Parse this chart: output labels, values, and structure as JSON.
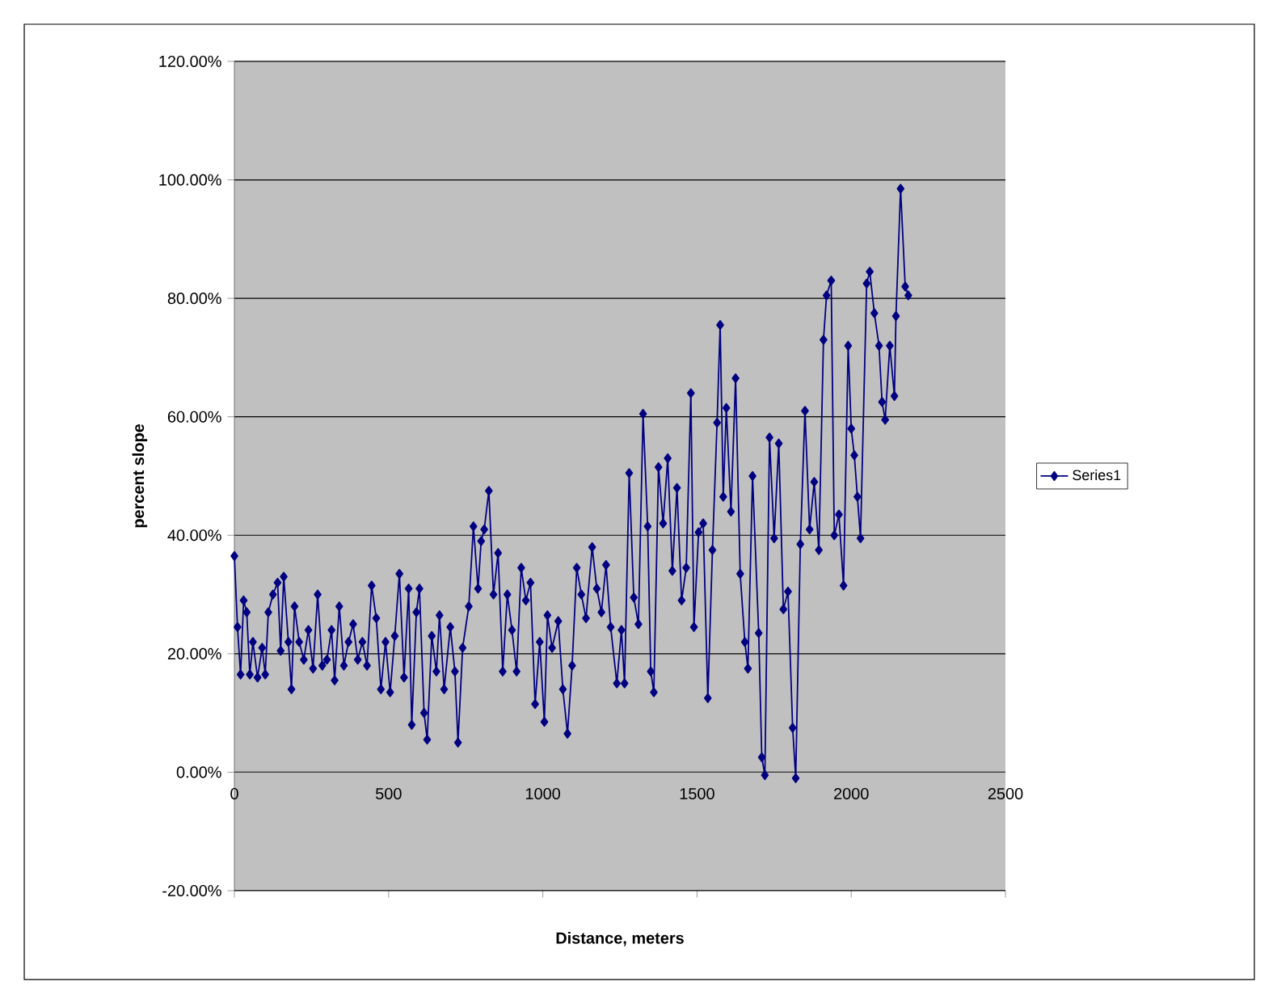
{
  "chart_data": {
    "type": "line",
    "xlabel": "Distance, meters",
    "ylabel": "percent slope",
    "xlim": [
      0,
      2500
    ],
    "xticks": [
      0,
      500,
      1000,
      1500,
      2000,
      2500
    ],
    "ylim": [
      -20,
      120
    ],
    "yticks": [
      {
        "value": -20,
        "label": "-20.00%"
      },
      {
        "value": 0,
        "label": "0.00%"
      },
      {
        "value": 20,
        "label": "20.00%"
      },
      {
        "value": 40,
        "label": "40.00%"
      },
      {
        "value": 60,
        "label": "60.00%"
      },
      {
        "value": 80,
        "label": "80.00%"
      },
      {
        "value": 100,
        "label": "100.00%"
      },
      {
        "value": 120,
        "label": "120.00%"
      }
    ],
    "grid": "y",
    "legend": "right",
    "marker": "diamond",
    "line_style": "solid",
    "series": [
      {
        "name": "Series1",
        "color": "#000080",
        "x": [
          0,
          10,
          20,
          30,
          40,
          50,
          60,
          75,
          90,
          100,
          110,
          125,
          140,
          150,
          160,
          175,
          185,
          195,
          210,
          225,
          240,
          255,
          270,
          285,
          300,
          315,
          325,
          340,
          355,
          370,
          385,
          400,
          415,
          430,
          445,
          460,
          475,
          490,
          505,
          520,
          535,
          550,
          565,
          575,
          590,
          600,
          615,
          625,
          640,
          655,
          665,
          680,
          700,
          715,
          725,
          740,
          760,
          775,
          790,
          800,
          810,
          825,
          840,
          855,
          870,
          885,
          900,
          915,
          930,
          945,
          960,
          975,
          990,
          1005,
          1015,
          1030,
          1050,
          1065,
          1080,
          1095,
          1110,
          1125,
          1140,
          1160,
          1175,
          1190,
          1205,
          1220,
          1240,
          1255,
          1265,
          1280,
          1295,
          1310,
          1325,
          1340,
          1350,
          1360,
          1375,
          1390,
          1405,
          1420,
          1435,
          1450,
          1465,
          1480,
          1490,
          1505,
          1520,
          1535,
          1550,
          1565,
          1575,
          1585,
          1595,
          1610,
          1625,
          1640,
          1655,
          1665,
          1680,
          1700,
          1710,
          1720,
          1735,
          1750,
          1765,
          1780,
          1795,
          1810,
          1820,
          1835,
          1850,
          1865,
          1880,
          1895,
          1910,
          1920,
          1935,
          1945,
          1960,
          1975,
          1990,
          2000,
          2010,
          2020,
          2030,
          2050,
          2060,
          2075,
          2090,
          2100,
          2110,
          2125,
          2140,
          2145,
          2160,
          2175,
          2185
        ],
        "values": [
          36.5,
          24.5,
          16.5,
          29,
          27,
          16.5,
          22,
          16,
          21,
          16.5,
          27,
          30,
          32,
          20.5,
          33,
          22,
          14,
          28,
          22,
          19,
          24,
          17.5,
          30,
          18,
          19,
          24,
          15.5,
          28,
          18,
          22,
          25,
          19,
          22,
          18,
          31.5,
          26,
          14,
          22,
          13.5,
          23,
          33.5,
          16,
          31,
          8,
          27,
          31,
          10,
          5.5,
          23,
          17,
          26.5,
          14,
          24.5,
          17,
          5,
          21,
          28,
          41.5,
          31,
          39,
          41,
          47.5,
          30,
          37,
          17,
          30,
          24,
          17,
          34.5,
          29,
          32,
          11.5,
          22,
          8.5,
          26.5,
          21,
          25.5,
          14,
          6.5,
          18,
          34.5,
          30,
          26,
          38,
          31,
          27,
          35,
          24.5,
          15,
          24,
          15,
          50.5,
          29.5,
          25,
          60.5,
          41.5,
          17,
          13.5,
          51.5,
          42,
          53,
          34,
          48,
          29,
          34.5,
          64,
          24.5,
          40.5,
          42,
          12.5,
          37.5,
          59,
          75.5,
          46.5,
          61.5,
          44,
          66.5,
          33.5,
          22,
          17.5,
          50,
          23.5,
          2.5,
          -0.5,
          56.5,
          39.5,
          55.5,
          27.5,
          30.5,
          7.5,
          -1,
          38.5,
          61,
          41,
          49,
          37.5,
          73,
          80.5,
          83,
          40,
          43.5,
          31.5,
          72,
          58,
          53.5,
          46.5,
          39.5,
          82.5,
          84.5,
          77.5,
          72,
          62.5,
          59.5,
          72,
          63.5,
          77,
          98.5,
          82,
          80.5
        ]
      }
    ]
  }
}
